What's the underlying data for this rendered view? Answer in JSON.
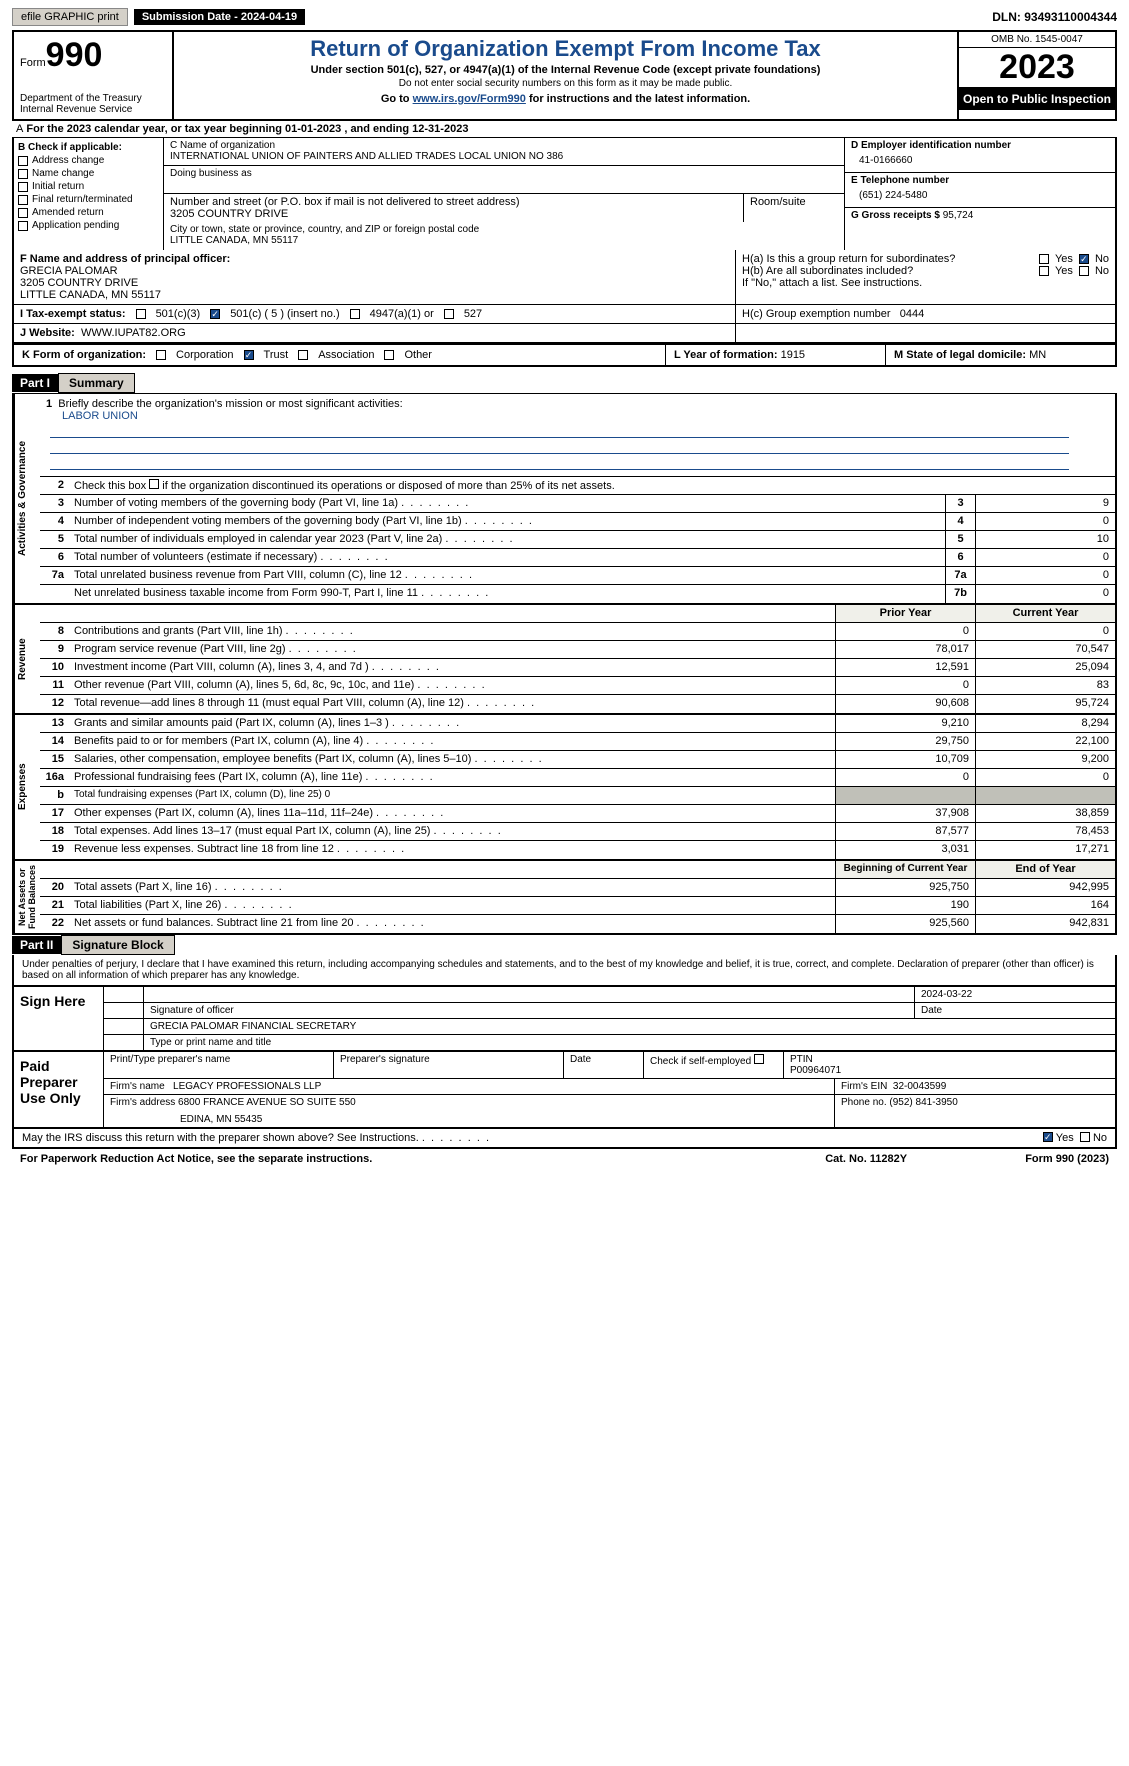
{
  "toolbar": {
    "efile": "efile GRAPHIC print",
    "sub_label": "Submission Date - 2024-04-19",
    "dln": "DLN: 93493110004344"
  },
  "header": {
    "form_word": "Form",
    "form_no": "990",
    "title": "Return of Organization Exempt From Income Tax",
    "subtitle": "Under section 501(c), 527, or 4947(a)(1) of the Internal Revenue Code (except private foundations)",
    "note1": "Do not enter social security numbers on this form as it may be made public.",
    "goto": "Go to ",
    "goto_link": "www.irs.gov/Form990",
    "goto_tail": " for instructions and the latest information.",
    "dept": "Department of the Treasury\nInternal Revenue Service",
    "omb": "OMB No. 1545-0047",
    "year": "2023",
    "inspect": "Open to Public Inspection"
  },
  "period": "For the 2023 calendar year, or tax year beginning 01-01-2023    , and ending 12-31-2023",
  "boxB": {
    "label": "B Check if applicable:",
    "items": [
      "Address change",
      "Name change",
      "Initial return",
      "Final return/terminated",
      "Amended return",
      "Application pending"
    ]
  },
  "boxC": {
    "name_lbl": "C Name of organization",
    "name": "INTERNATIONAL UNION OF PAINTERS AND ALLIED TRADES LOCAL UNION NO 386",
    "dba_lbl": "Doing business as",
    "street_lbl": "Number and street (or P.O. box if mail is not delivered to street address)",
    "street": "3205 COUNTRY DRIVE",
    "room_lbl": "Room/suite",
    "city_lbl": "City or town, state or province, country, and ZIP or foreign postal code",
    "city": "LITTLE CANADA, MN  55117"
  },
  "boxD": {
    "lbl": "D Employer identification number",
    "val": "41-0166660"
  },
  "boxE": {
    "lbl": "E Telephone number",
    "val": "(651) 224-5480"
  },
  "boxG": {
    "lbl": "G Gross receipts $",
    "val": "95,724"
  },
  "boxF": {
    "lbl": "F  Name and address of principal officer:",
    "name": "GRECIA PALOMAR",
    "l2": "3205 COUNTRY DRIVE",
    "l3": "LITTLE CANADA, MN  55117"
  },
  "boxH": {
    "a": "H(a)  Is this a group return for subordinates?",
    "a_yes": "Yes",
    "a_no": "No",
    "b": "H(b)  Are all subordinates included?",
    "b_yes": "Yes",
    "b_no": "No",
    "b_note": "If \"No,\" attach a list. See instructions.",
    "c": "H(c)  Group exemption number",
    "c_val": "0444"
  },
  "boxI": {
    "lbl": "I    Tax-exempt status:",
    "c3": "501(c)(3)",
    "c": "501(c) ( 5 ) (insert no.)",
    "a4947": "4947(a)(1) or",
    "s527": "527"
  },
  "boxJ": {
    "lbl": "J    Website:",
    "val": "WWW.IUPAT82.ORG"
  },
  "boxK": {
    "lbl": "K Form of organization:",
    "corp": "Corporation",
    "trust": "Trust",
    "assoc": "Association",
    "other": "Other"
  },
  "boxL": {
    "lbl": "L Year of formation:",
    "val": "1915"
  },
  "boxM": {
    "lbl": "M State of legal domicile:",
    "val": "MN"
  },
  "part1": {
    "tag": "Part I",
    "title": "Summary"
  },
  "govlabel": "Activities & Governance",
  "briefly": {
    "num": "1",
    "txt": "Briefly describe the organization's mission or most significant activities:",
    "val": "LABOR UNION"
  },
  "line2": {
    "num": "2",
    "txt": "Check this box",
    "tail": "if the organization discontinued its operations or disposed of more than 25% of its net assets."
  },
  "govlines": [
    {
      "n": "3",
      "d": "Number of voting members of the governing body (Part VI, line 1a)",
      "k": "3",
      "v": "9"
    },
    {
      "n": "4",
      "d": "Number of independent voting members of the governing body (Part VI, line 1b)",
      "k": "4",
      "v": "0"
    },
    {
      "n": "5",
      "d": "Total number of individuals employed in calendar year 2023 (Part V, line 2a)",
      "k": "5",
      "v": "10"
    },
    {
      "n": "6",
      "d": "Total number of volunteers (estimate if necessary)",
      "k": "6",
      "v": "0"
    },
    {
      "n": "7a",
      "d": "Total unrelated business revenue from Part VIII, column (C), line 12",
      "k": "7a",
      "v": "0"
    },
    {
      "n": "",
      "d": "Net unrelated business taxable income from Form 990-T, Part I, line 11",
      "k": "7b",
      "v": "0"
    }
  ],
  "col_prior": "Prior Year",
  "col_curr": "Current Year",
  "revlabel": "Revenue",
  "revlines": [
    {
      "n": "8",
      "d": "Contributions and grants (Part VIII, line 1h)",
      "p": "0",
      "c": "0"
    },
    {
      "n": "9",
      "d": "Program service revenue (Part VIII, line 2g)",
      "p": "78,017",
      "c": "70,547"
    },
    {
      "n": "10",
      "d": "Investment income (Part VIII, column (A), lines 3, 4, and 7d )",
      "p": "12,591",
      "c": "25,094"
    },
    {
      "n": "11",
      "d": "Other revenue (Part VIII, column (A), lines 5, 6d, 8c, 9c, 10c, and 11e)",
      "p": "0",
      "c": "83"
    },
    {
      "n": "12",
      "d": "Total revenue—add lines 8 through 11 (must equal Part VIII, column (A), line 12)",
      "p": "90,608",
      "c": "95,724"
    }
  ],
  "explabel": "Expenses",
  "explines": [
    {
      "n": "13",
      "d": "Grants and similar amounts paid (Part IX, column (A), lines 1–3 )",
      "p": "9,210",
      "c": "8,294"
    },
    {
      "n": "14",
      "d": "Benefits paid to or for members (Part IX, column (A), line 4)",
      "p": "29,750",
      "c": "22,100"
    },
    {
      "n": "15",
      "d": "Salaries, other compensation, employee benefits (Part IX, column (A), lines 5–10)",
      "p": "10,709",
      "c": "9,200"
    },
    {
      "n": "16a",
      "d": "Professional fundraising fees (Part IX, column (A), line 11e)",
      "p": "0",
      "c": "0"
    },
    {
      "n": "b",
      "d": "Total fundraising expenses (Part IX, column (D), line 25) 0",
      "shade": true
    },
    {
      "n": "17",
      "d": "Other expenses (Part IX, column (A), lines 11a–11d, 11f–24e)",
      "p": "37,908",
      "c": "38,859"
    },
    {
      "n": "18",
      "d": "Total expenses. Add lines 13–17 (must equal Part IX, column (A), line 25)",
      "p": "87,577",
      "c": "78,453"
    },
    {
      "n": "19",
      "d": "Revenue less expenses. Subtract line 18 from line 12",
      "p": "3,031",
      "c": "17,271"
    }
  ],
  "netlabel": "Net Assets or\nFund Balances",
  "col_beg": "Beginning of Current Year",
  "col_end": "End of Year",
  "netlines": [
    {
      "n": "20",
      "d": "Total assets (Part X, line 16)",
      "p": "925,750",
      "c": "942,995"
    },
    {
      "n": "21",
      "d": "Total liabilities (Part X, line 26)",
      "p": "190",
      "c": "164"
    },
    {
      "n": "22",
      "d": "Net assets or fund balances. Subtract line 21 from line 20",
      "p": "925,560",
      "c": "942,831"
    }
  ],
  "part2": {
    "tag": "Part II",
    "title": "Signature Block"
  },
  "penalty": "Under penalties of perjury, I declare that I have examined this return, including accompanying schedules and statements, and to the best of my knowledge and belief, it is true, correct, and complete. Declaration of preparer (other than officer) is based on all information of which preparer has any knowledge.",
  "sign": {
    "here": "Sign Here",
    "sig_lbl": "Signature of officer",
    "date_lbl": "Date",
    "date": "2024-03-22",
    "name": "GRECIA PALOMAR  FINANCIAL SECRETARY",
    "type_lbl": "Type or print name and title"
  },
  "paid": {
    "lbl": "Paid Preparer Use Only",
    "h1": "Print/Type preparer's name",
    "h2": "Preparer's signature",
    "h3": "Date",
    "self": "Check         if self-employed",
    "ptin_lbl": "PTIN",
    "ptin": "P00964071",
    "firm_lbl": "Firm's name",
    "firm": "LEGACY PROFESSIONALS LLP",
    "ein_lbl": "Firm's EIN",
    "ein": "32-0043599",
    "addr_lbl": "Firm's address",
    "addr": "6800 FRANCE AVENUE SO SUITE 550",
    "addr2": "EDINA, MN  55435",
    "phone_lbl": "Phone no.",
    "phone": "(952) 841-3950"
  },
  "discuss": {
    "txt": "May the IRS discuss this return with the preparer shown above? See Instructions.",
    "yes": "Yes",
    "no": "No"
  },
  "footer": {
    "pra": "For Paperwork Reduction Act Notice, see the separate instructions.",
    "cat": "Cat. No. 11282Y",
    "form": "Form 990 (2023)"
  },
  "style": {
    "accent_color": "#1a4b8c",
    "bg_toolbar": "#d4d0c8",
    "shade": "#c0c0b8",
    "font_main": 11,
    "font_title": 22,
    "font_year": 34
  }
}
